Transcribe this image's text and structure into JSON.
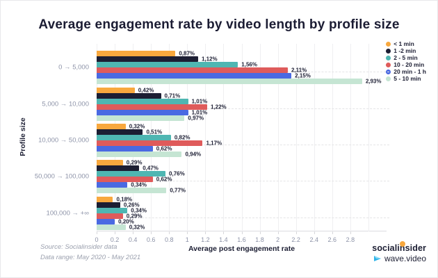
{
  "title": "Average engagement rate by video length by profile size",
  "chart_data": {
    "type": "bar",
    "orientation": "horizontal",
    "title": "Average engagement rate by video length by profile size",
    "xlabel": "Average post engagement rate",
    "ylabel": "Profile size",
    "categories": [
      "0 → 5,000",
      "5,000 → 10,000",
      "10,000 → 50,000",
      "50,000 → 100,000",
      "100,000 → +∞"
    ],
    "series": [
      {
        "name": "< 1 min",
        "color": "#f8a83e",
        "values": [
          0.87,
          0.42,
          0.32,
          0.29,
          0.18
        ],
        "labels": [
          "0,87%",
          "0,42%",
          "0,32%",
          "0,29%",
          "0,18%"
        ]
      },
      {
        "name": "1 -2 min",
        "color": "#1c1e33",
        "values": [
          1.12,
          0.71,
          0.51,
          0.47,
          0.26
        ],
        "labels": [
          "1,12%",
          "0,71%",
          "0,51%",
          "0,47%",
          "0,26%"
        ]
      },
      {
        "name": "2 - 5 min",
        "color": "#4fb6b2",
        "values": [
          1.56,
          1.01,
          0.82,
          0.76,
          0.34
        ],
        "labels": [
          "1,56%",
          "1,01%",
          "0,82%",
          "0,76%",
          "0,34%"
        ]
      },
      {
        "name": "10 - 20 min",
        "color": "#df5b5b",
        "values": [
          2.11,
          1.22,
          1.17,
          0.62,
          0.29
        ],
        "labels": [
          "2,11%",
          "1,22%",
          "1,17%",
          "0,62%",
          "0,29%"
        ]
      },
      {
        "name": "20 min - 1 h",
        "color": "#4a69e2",
        "values": [
          2.15,
          1.01,
          0.62,
          0.34,
          0.2
        ],
        "labels": [
          "2,15%",
          "1,01%",
          "0,62%",
          "0,34%",
          "0,20%"
        ]
      },
      {
        "name": "5 - 10 min",
        "color": "#c5e5d3",
        "values": [
          2.93,
          0.97,
          0.94,
          0.77,
          0.32
        ],
        "labels": [
          "2,93%",
          "0,97%",
          "0,94%",
          "0,77%",
          "0,32%"
        ]
      }
    ],
    "xlim": [
      0,
      3.2
    ],
    "xticks": [
      0,
      0.2,
      0.4,
      0.6,
      0.8,
      1,
      1.2,
      1.4,
      1.6,
      1.8,
      2,
      2.2,
      2.4,
      2.6,
      2.8
    ],
    "xtick_labels": [
      "0",
      "0.2",
      "0.4",
      "0.6",
      "0.8",
      "1",
      "1.2",
      "1.4",
      "1.6",
      "1.8",
      "2",
      "2.2",
      "2.4",
      "2.6",
      "2.8"
    ],
    "grid": true,
    "legend_position": "top-right"
  },
  "footer": {
    "source_line1": "Source: Socialinsider data",
    "source_line2": "Data range: May 2020 - May 2021",
    "logo_socialinsider": "socialinsider",
    "logo_wavevideo": "wave.video"
  }
}
